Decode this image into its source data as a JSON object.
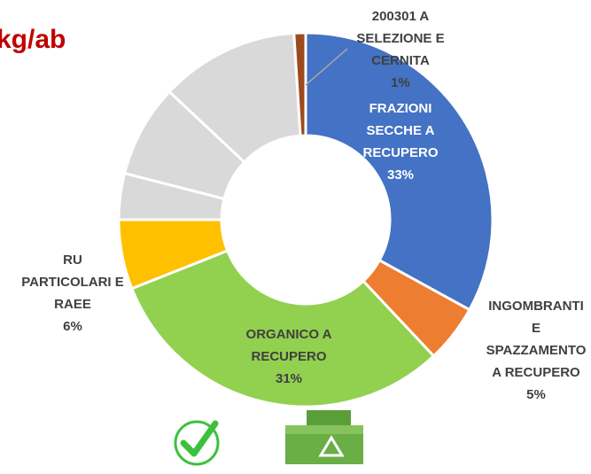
{
  "chart_data": {
    "type": "donut",
    "title": "kg/ab",
    "categories": [
      "FRAZIONI\nSECCHE A\nRECUPERO",
      "INGOMBRANTI\nE\nSPAZZAMENTO\nA RECUPERO",
      "ORGANICO A\nRECUPERO",
      "RU\nPARTICOLARI E\nRAEE",
      null,
      null,
      null,
      "200301 A\nSELEZIONE E\nCERNITA"
    ],
    "values": [
      33,
      5,
      31,
      6,
      4,
      8,
      12,
      1
    ],
    "value_labels": [
      "33%",
      "5%",
      "31%",
      "6%",
      null,
      null,
      null,
      "1%"
    ],
    "colors": [
      "#4472c4",
      "#ed7d31",
      "#92d050",
      "#ffc000",
      "#d9d9d9",
      "#d9d9d9",
      "#d9d9d9",
      "#9e4a1c"
    ]
  }
}
